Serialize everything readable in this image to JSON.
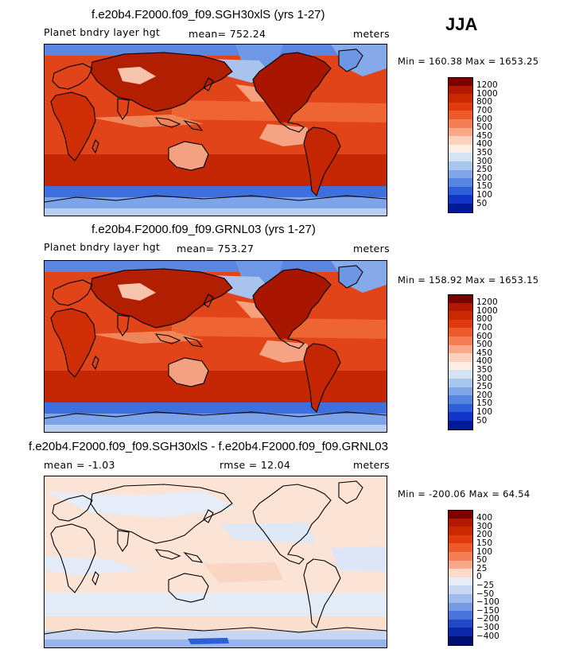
{
  "season": "JJA",
  "panels": [
    {
      "title": "f.e20b4.F2000.f09_f09.SGH30xlS (yrs 1-27)",
      "variable": "Planet bndry layer hgt",
      "stat": "mean= 752.24",
      "units": "meters",
      "minmax": "Min = 160.38 Max = 1653.25",
      "style": "abs",
      "colorbar": {
        "labels": [
          "1200",
          "1000",
          "800",
          "700",
          "600",
          "500",
          "450",
          "400",
          "350",
          "300",
          "250",
          "200",
          "150",
          "100",
          "50"
        ],
        "colors": [
          "#7a0000",
          "#b01800",
          "#cc2800",
          "#e03a10",
          "#ee5a2a",
          "#f57f55",
          "#f9a98a",
          "#fcd2bd",
          "#fff0e6",
          "#d4e4f5",
          "#a8c6ee",
          "#7fa6e8",
          "#5585e0",
          "#2d60d8",
          "#1234c8",
          "#001a9a"
        ]
      }
    },
    {
      "title": "f.e20b4.F2000.f09_f09.GRNL03 (yrs 1-27)",
      "variable": "Planet bndry layer hgt",
      "stat": "mean= 753.27",
      "units": "meters",
      "minmax": "Min = 158.92 Max = 1653.15",
      "style": "abs",
      "colorbar": {
        "labels": [
          "1200",
          "1000",
          "800",
          "700",
          "600",
          "500",
          "450",
          "400",
          "350",
          "300",
          "250",
          "200",
          "150",
          "100",
          "50"
        ],
        "colors": [
          "#7a0000",
          "#b01800",
          "#cc2800",
          "#e03a10",
          "#ee5a2a",
          "#f57f55",
          "#f9a98a",
          "#fcd2bd",
          "#fff0e6",
          "#d4e4f5",
          "#a8c6ee",
          "#7fa6e8",
          "#5585e0",
          "#2d60d8",
          "#1234c8",
          "#001a9a"
        ]
      }
    },
    {
      "title": "f.e20b4.F2000.f09_f09.SGH30xlS - f.e20b4.F2000.f09_f09.GRNL03",
      "variable": "mean =  -1.03",
      "stat": "rmse =  12.04",
      "units": "meters",
      "minmax": "Min = -200.06 Max =  64.54",
      "style": "diff",
      "colorbar": {
        "labels": [
          "400",
          "300",
          "200",
          "150",
          "100",
          "50",
          "25",
          "0",
          "−25",
          "−50",
          "−100",
          "−150",
          "−200",
          "−300",
          "−400"
        ],
        "colors": [
          "#7a0000",
          "#b01800",
          "#cc2800",
          "#e03a10",
          "#ee5a2a",
          "#f57f55",
          "#f9a98a",
          "#fcdcc8",
          "#e8eef8",
          "#c9d9f2",
          "#a0bced",
          "#759be5",
          "#4a74dc",
          "#2048c8",
          "#0a28a8",
          "#001070"
        ]
      }
    }
  ]
}
